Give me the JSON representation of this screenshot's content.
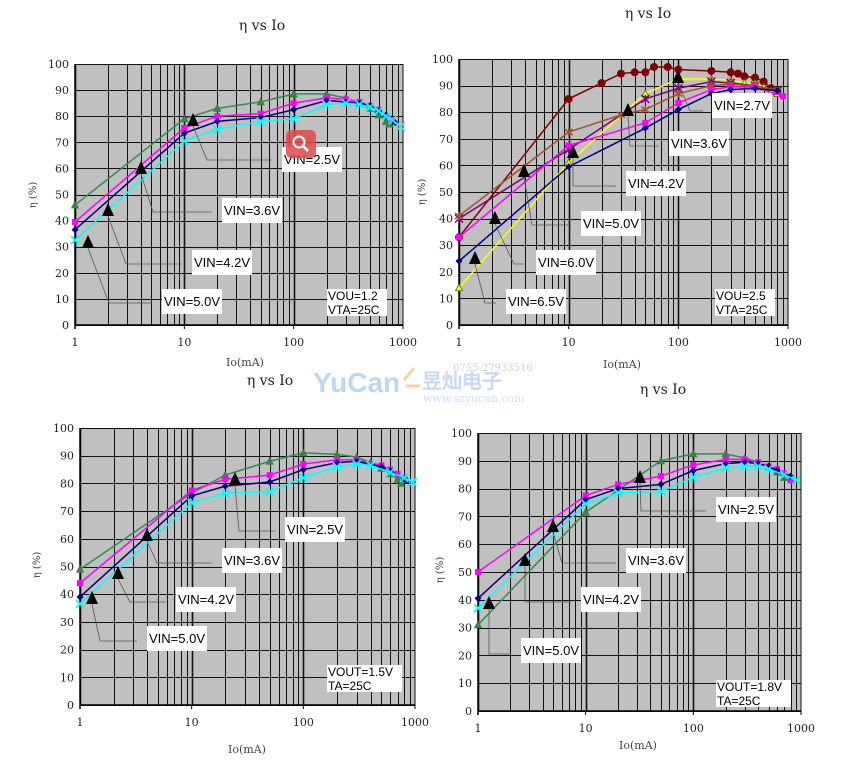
{
  "watermark": {
    "phone": "0755-27933516",
    "brand": "YuCan",
    "brand_cn": "昱灿电子",
    "url": "www.szyucan.com"
  },
  "overlay": {
    "icon": "zoom-icon",
    "color": "#e04848"
  },
  "chart_data": [
    {
      "type": "line",
      "title": "η vs Io",
      "xlabel": "Io(mA)",
      "ylabel": "η (%)",
      "xscale": "log",
      "xlim": [
        1,
        1000
      ],
      "ylim": [
        0,
        100
      ],
      "grid": true,
      "plot_background": "#c0c0c0",
      "xticks": [
        "1",
        "10",
        "100",
        "1000"
      ],
      "yticks": [
        "0",
        "10",
        "20",
        "30",
        "40",
        "50",
        "60",
        "70",
        "80",
        "90",
        "100"
      ],
      "annotations": [
        "VIN=2.5V",
        "VIN=3.6V",
        "VIN=4.2V",
        "VIN=5.0V"
      ],
      "note": [
        "VOU=1.2",
        "VTA=25C"
      ],
      "series": [
        {
          "color": "#2e8b57",
          "marker": "triangle",
          "points": [
            [
              1,
              46
            ],
            [
              10,
              79
            ],
            [
              20,
              83
            ],
            [
              50,
              85.5
            ],
            [
              100,
              88.5
            ],
            [
              200,
              88.5
            ],
            [
              300,
              87
            ],
            [
              400,
              85
            ],
            [
              500,
              83
            ],
            [
              600,
              80.5
            ],
            [
              700,
              78
            ],
            [
              750,
              77
            ]
          ]
        },
        {
          "color": "#ff00ff",
          "marker": "square",
          "points": [
            [
              1,
              39.5
            ],
            [
              10,
              75.5
            ],
            [
              20,
              80
            ],
            [
              50,
              81
            ],
            [
              100,
              85
            ],
            [
              200,
              87
            ],
            [
              300,
              86.5
            ],
            [
              400,
              85.5
            ],
            [
              500,
              84
            ],
            [
              600,
              82.5
            ],
            [
              700,
              80
            ],
            [
              800,
              78.5
            ]
          ]
        },
        {
          "color": "#000080",
          "marker": "diamond",
          "points": [
            [
              1,
              36.5
            ],
            [
              10,
              73.5
            ],
            [
              20,
              78
            ],
            [
              50,
              79.5
            ],
            [
              100,
              82.5
            ],
            [
              200,
              86
            ],
            [
              300,
              85.5
            ],
            [
              400,
              85
            ],
            [
              500,
              84
            ],
            [
              600,
              82
            ],
            [
              700,
              80.5
            ],
            [
              850,
              77.5
            ]
          ]
        },
        {
          "color": "#00ffff",
          "marker": "x",
          "points": [
            [
              1,
              32.5
            ],
            [
              10,
              70.5
            ],
            [
              20,
              75
            ],
            [
              50,
              78
            ],
            [
              100,
              79
            ],
            [
              200,
              84.5
            ],
            [
              300,
              85
            ],
            [
              400,
              84.5
            ],
            [
              500,
              83.5
            ],
            [
              600,
              82
            ],
            [
              700,
              80
            ],
            [
              800,
              78.5
            ],
            [
              950,
              76
            ]
          ]
        }
      ]
    },
    {
      "type": "line",
      "title": "η vs Io",
      "xlabel": "Io(mA)",
      "ylabel": "η (%)",
      "xscale": "log",
      "xlim": [
        1,
        1000
      ],
      "ylim": [
        0,
        100
      ],
      "grid": true,
      "plot_background": "#c0c0c0",
      "xticks": [
        "1",
        "10",
        "100",
        "1000"
      ],
      "yticks": [
        "0",
        "10",
        "20",
        "30",
        "40",
        "50",
        "60",
        "70",
        "80",
        "90",
        "100"
      ],
      "annotations": [
        "VIN=2.7V",
        "VIN=3.6V",
        "VIN=4.2V",
        "VIN=5.0V",
        "VIN=6.0V",
        "VIN=6.5V"
      ],
      "note": [
        "VOU=2.5",
        "VTA=25C"
      ],
      "series": [
        {
          "color": "#800000",
          "marker": "circle",
          "points": [
            [
              1,
              33
            ],
            [
              10,
              85
            ],
            [
              20,
              91
            ],
            [
              30,
              94.5
            ],
            [
              40,
              95
            ],
            [
              50,
              95
            ],
            [
              60,
              97
            ],
            [
              80,
              97
            ],
            [
              100,
              96
            ],
            [
              200,
              95.5
            ],
            [
              300,
              95
            ],
            [
              350,
              94.5
            ],
            [
              400,
              93.5
            ],
            [
              500,
              93
            ],
            [
              600,
              91.5
            ],
            [
              700,
              89
            ],
            [
              800,
              88
            ]
          ]
        },
        {
          "color": "#ffff00",
          "marker": "triangle",
          "points": [
            [
              1,
              14
            ],
            [
              10,
              61
            ],
            [
              50,
              87
            ],
            [
              100,
              92.5
            ],
            [
              200,
              92.5
            ],
            [
              300,
              92
            ],
            [
              400,
              91
            ],
            [
              500,
              91
            ],
            [
              600,
              89.5
            ],
            [
              700,
              88
            ],
            [
              800,
              87
            ]
          ]
        },
        {
          "color": "#800080",
          "marker": "asterisk",
          "points": [
            [
              1,
              40
            ],
            [
              10,
              66
            ],
            [
              50,
              85
            ],
            [
              100,
              89
            ],
            [
              200,
              91.5
            ],
            [
              300,
              91
            ],
            [
              500,
              90
            ],
            [
              800,
              88
            ]
          ]
        },
        {
          "color": "#a0522d",
          "marker": "star",
          "points": [
            [
              1,
              41
            ],
            [
              10,
              72.5
            ],
            [
              30,
              79
            ],
            [
              50,
              81
            ],
            [
              100,
              87
            ],
            [
              200,
              90
            ],
            [
              300,
              90.5
            ],
            [
              500,
              90
            ],
            [
              800,
              88
            ]
          ]
        },
        {
          "color": "#ff00ff",
          "marker": "square",
          "points": [
            [
              1,
              33
            ],
            [
              10,
              67.5
            ],
            [
              50,
              76
            ],
            [
              100,
              83.5
            ],
            [
              200,
              88.5
            ],
            [
              300,
              89.5
            ],
            [
              500,
              89.5
            ],
            [
              900,
              86
            ]
          ]
        },
        {
          "color": "#000080",
          "marker": "diamond",
          "points": [
            [
              1,
              24
            ],
            [
              10,
              59.5
            ],
            [
              50,
              74
            ],
            [
              100,
              81
            ],
            [
              200,
              87
            ],
            [
              300,
              88.5
            ],
            [
              500,
              89
            ],
            [
              800,
              88
            ]
          ]
        }
      ]
    },
    {
      "type": "line",
      "title": "η vs Io",
      "xlabel": "Io(mA)",
      "ylabel": "η (%)",
      "xscale": "log",
      "xlim": [
        1,
        1000
      ],
      "ylim": [
        0,
        100
      ],
      "grid": true,
      "plot_background": "#c0c0c0",
      "xticks": [
        "1",
        "10",
        "100",
        "1000"
      ],
      "yticks": [
        "0",
        "10",
        "20",
        "30",
        "40",
        "50",
        "60",
        "70",
        "80",
        "90",
        "100"
      ],
      "annotations": [
        "VIN=2.5V",
        "VIN=3.6V",
        "VIN=4.2V",
        "VIN=5.0V"
      ],
      "note": [
        "VOUT=1.5V",
        "TA=25C"
      ],
      "series": [
        {
          "color": "#2e8b57",
          "marker": "triangle",
          "points": [
            [
              1,
              49
            ],
            [
              10,
              76.5
            ],
            [
              20,
              83
            ],
            [
              50,
              88
            ],
            [
              100,
              91
            ],
            [
              200,
              90.5
            ],
            [
              300,
              89.5
            ],
            [
              400,
              87.5
            ],
            [
              500,
              85.5
            ],
            [
              600,
              83.5
            ],
            [
              700,
              81.5
            ],
            [
              750,
              80
            ]
          ]
        },
        {
          "color": "#ff00ff",
          "marker": "square",
          "points": [
            [
              1,
              44
            ],
            [
              10,
              77.5
            ],
            [
              20,
              81.5
            ],
            [
              50,
              83
            ],
            [
              100,
              87
            ],
            [
              200,
              88.5
            ],
            [
              300,
              88.5
            ],
            [
              500,
              86.5
            ],
            [
              600,
              85
            ],
            [
              700,
              83.5
            ],
            [
              800,
              82
            ]
          ]
        },
        {
          "color": "#000080",
          "marker": "diamond",
          "points": [
            [
              1,
              39
            ],
            [
              10,
              75.5
            ],
            [
              20,
              79
            ],
            [
              50,
              80.5
            ],
            [
              100,
              85
            ],
            [
              200,
              87.5
            ],
            [
              300,
              88
            ],
            [
              500,
              86
            ],
            [
              600,
              84.5
            ],
            [
              800,
              81.5
            ],
            [
              850,
              81
            ]
          ]
        },
        {
          "color": "#00ffff",
          "marker": "x",
          "points": [
            [
              1,
              36.5
            ],
            [
              10,
              73
            ],
            [
              20,
              76.5
            ],
            [
              50,
              77
            ],
            [
              100,
              82
            ],
            [
              200,
              86
            ],
            [
              300,
              87
            ],
            [
              400,
              86.5
            ],
            [
              600,
              84
            ],
            [
              800,
              82
            ],
            [
              950,
              80.5
            ]
          ]
        }
      ]
    },
    {
      "type": "line",
      "title": "η vs Io",
      "xlabel": "Io(mA)",
      "ylabel": "η (%)",
      "xscale": "log",
      "xlim": [
        1,
        1000
      ],
      "ylim": [
        0,
        100
      ],
      "grid": true,
      "plot_background": "#c0c0c0",
      "xticks": [
        "1",
        "10",
        "100",
        "1000"
      ],
      "yticks": [
        "0",
        "10",
        "20",
        "30",
        "40",
        "50",
        "60",
        "70",
        "80",
        "90",
        "100"
      ],
      "annotations": [
        "VIN=2.5V",
        "VIN=3.6V",
        "VIN=4.2V",
        "VIN=5.0V"
      ],
      "note": [
        "VOUT=1.8V",
        "TA=25C"
      ],
      "series": [
        {
          "color": "#2e8b57",
          "marker": "triangle",
          "points": [
            [
              1,
              31
            ],
            [
              10,
              71.5
            ],
            [
              50,
              90
            ],
            [
              100,
              92.5
            ],
            [
              200,
              92.5
            ],
            [
              300,
              91
            ],
            [
              400,
              89.5
            ],
            [
              500,
              88
            ],
            [
              600,
              86
            ],
            [
              700,
              84
            ]
          ]
        },
        {
          "color": "#ff00ff",
          "marker": "square",
          "points": [
            [
              1,
              50
            ],
            [
              10,
              77.5
            ],
            [
              20,
              81.5
            ],
            [
              50,
              84.5
            ],
            [
              100,
              88.5
            ],
            [
              200,
              90.5
            ],
            [
              300,
              90.5
            ],
            [
              400,
              89.5
            ],
            [
              500,
              88
            ],
            [
              600,
              87
            ],
            [
              700,
              85.5
            ],
            [
              800,
              83
            ]
          ]
        },
        {
          "color": "#000080",
          "marker": "diamond",
          "points": [
            [
              1,
              40.5
            ],
            [
              10,
              76
            ],
            [
              20,
              80
            ],
            [
              50,
              81.5
            ],
            [
              100,
              86.5
            ],
            [
              200,
              89
            ],
            [
              300,
              89.5
            ],
            [
              400,
              89
            ],
            [
              500,
              88
            ],
            [
              600,
              86.5
            ],
            [
              800,
              84.5
            ]
          ]
        },
        {
          "color": "#00ffff",
          "marker": "x",
          "points": [
            [
              1,
              37
            ],
            [
              10,
              74.5
            ],
            [
              20,
              78.5
            ],
            [
              50,
              79
            ],
            [
              100,
              84
            ],
            [
              200,
              87.5
            ],
            [
              300,
              88
            ],
            [
              400,
              88
            ],
            [
              500,
              87
            ],
            [
              700,
              85
            ],
            [
              900,
              83
            ]
          ]
        }
      ]
    }
  ]
}
